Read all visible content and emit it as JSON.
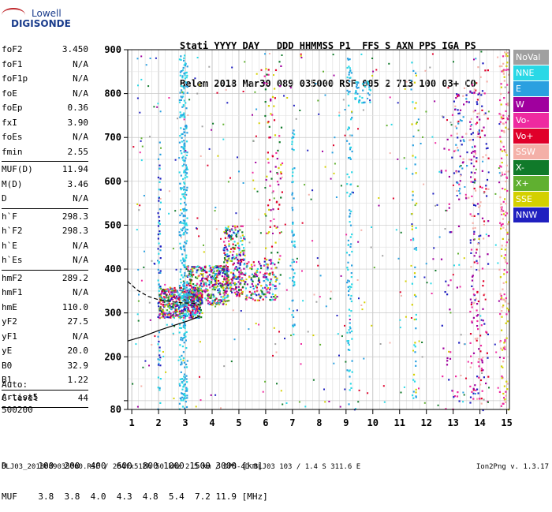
{
  "logo": {
    "line1": "Lowell",
    "line2": "DIGISONDE"
  },
  "header": {
    "labels": [
      "Stati",
      "YYYY",
      "DAY",
      "DDD",
      "HHMMSS",
      "P1",
      "FFS",
      "S",
      "AXN",
      "PPS",
      "IGA",
      "PS"
    ],
    "values": [
      "Belem",
      "2018",
      "Mar30",
      "089",
      "035000",
      "RSF",
      "005",
      "2",
      "713",
      "100",
      "03+",
      "C0"
    ]
  },
  "params": [
    [
      {
        "n": "foF2",
        "v": "3.450"
      },
      {
        "n": "foF1",
        "v": "N/A"
      },
      {
        "n": "foF1p",
        "v": "N/A"
      },
      {
        "n": "foE",
        "v": "N/A"
      },
      {
        "n": "foEp",
        "v": "0.36"
      },
      {
        "n": "fxI",
        "v": "3.90"
      },
      {
        "n": "foEs",
        "v": "N/A"
      },
      {
        "n": "fmin",
        "v": "2.55"
      }
    ],
    [
      {
        "n": "MUF(D)",
        "v": "11.94"
      },
      {
        "n": "M(D)",
        "v": "3.46"
      },
      {
        "n": "D",
        "v": "N/A"
      }
    ],
    [
      {
        "n": "h`F",
        "v": "298.3"
      },
      {
        "n": "h`F2",
        "v": "298.3"
      },
      {
        "n": "h`E",
        "v": "N/A"
      },
      {
        "n": "h`Es",
        "v": "N/A"
      }
    ],
    [
      {
        "n": "hmF2",
        "v": "289.2"
      },
      {
        "n": "hmF1",
        "v": "N/A"
      },
      {
        "n": "hmE",
        "v": "110.0"
      },
      {
        "n": "yF2",
        "v": "27.5"
      },
      {
        "n": "yF1",
        "v": "N/A"
      },
      {
        "n": "yE",
        "v": "20.0"
      },
      {
        "n": "B0",
        "v": "32.9"
      },
      {
        "n": "B1",
        "v": "1.22"
      }
    ],
    [
      {
        "n": "C-level",
        "v": "44"
      }
    ]
  ],
  "auto": {
    "line1": "Auto:",
    "line2": "Artist5",
    "line3": "500200"
  },
  "legend": [
    {
      "label": "NoVal",
      "color": "#a0a0a0"
    },
    {
      "label": "NNE",
      "color": "#2ad8e6"
    },
    {
      "label": "E",
      "color": "#2aa0e0"
    },
    {
      "label": "W",
      "color": "#a0009e"
    },
    {
      "label": "Vo-",
      "color": "#ee2aa0"
    },
    {
      "label": "Vo+",
      "color": "#e0002a"
    },
    {
      "label": "SSW",
      "color": "#f4b0a8"
    },
    {
      "label": "X-",
      "color": "#107a2a"
    },
    {
      "label": "X+",
      "color": "#60b030"
    },
    {
      "label": "SSE",
      "color": "#d4d000"
    },
    {
      "label": "NNW",
      "color": "#2020c0"
    }
  ],
  "dmuf": {
    "d_label": "D",
    "d_values": [
      "100",
      "200",
      "400",
      "600",
      "800",
      "1000",
      "1500",
      "3000"
    ],
    "d_unit": "[km]",
    "muf_label": "MUF",
    "muf_values": [
      "3.8",
      "3.8",
      "4.0",
      "4.3",
      "4.8",
      "5.4",
      "7.2",
      "11.9"
    ],
    "muf_unit": "[MHz]"
  },
  "footer": {
    "text": "BLJ03_2018089035000.RSF / 284fx512h 50 kHz 2.5 km / DPS-4D BLJ03 103 / 1.4 S 311.6 E",
    "version": "Ion2Png v. 1.3.17"
  },
  "chart_data": {
    "type": "scatter",
    "title": "",
    "xlabel": "",
    "ylabel": "",
    "xlim": [
      0.85,
      15.1
    ],
    "ylim": [
      80,
      900
    ],
    "xticks": [
      1,
      2,
      3,
      4,
      5,
      6,
      7,
      8,
      9,
      10,
      11,
      12,
      13,
      14,
      15
    ],
    "yticks": [
      80,
      100,
      200,
      300,
      400,
      500,
      600,
      700,
      800,
      900
    ],
    "ytick_labels": [
      "80",
      "",
      "200",
      "300",
      "400",
      "500",
      "600",
      "700",
      "800",
      "900"
    ],
    "grid": true,
    "legend_position": "right",
    "traces": [
      {
        "style": "dashed",
        "x": [
          0.85,
          1.2,
          1.6,
          2.0,
          2.4,
          2.9,
          3.3,
          3.5
        ],
        "y": [
          372,
          352,
          338,
          330,
          326,
          323,
          322,
          320
        ]
      },
      {
        "style": "solid",
        "x": [
          0.85,
          1.4,
          2.0,
          2.6,
          3.1,
          3.4,
          3.55
        ],
        "y": [
          236,
          246,
          260,
          272,
          282,
          289,
          293
        ]
      }
    ]
  }
}
